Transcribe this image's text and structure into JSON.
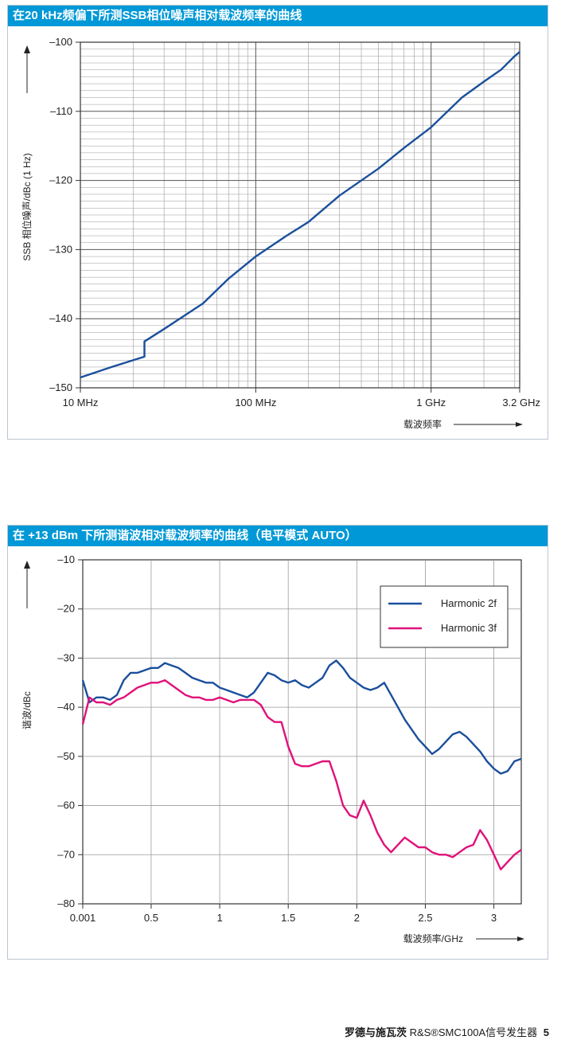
{
  "charts": [
    {
      "title": "在20 kHz频偏下所测SSB相位噪声相对载波频率的曲线"
    },
    {
      "title": "在 +13 dBm 下所测谐波相对载波频率的曲线（电平模式 AUTO）"
    }
  ],
  "footer": {
    "brand": "罗德与施瓦茨",
    "product": "R&S®SMC100A信号发生器",
    "page": "5"
  },
  "colors": {
    "header_bg": "#0098d6",
    "series_blue": "#1a4f9c",
    "series_magenta": "#e0117a",
    "grid": "#9a9a9a"
  },
  "chart_data": [
    {
      "type": "line",
      "title": "在20 kHz频偏下所测SSB相位噪声相对载波频率的曲线",
      "xlabel": "载波频率",
      "ylabel": "SSB 相位噪声/dBc (1 Hz)",
      "x_scale": "log",
      "xlim": [
        10,
        3200
      ],
      "ylim": [
        -150,
        -100
      ],
      "x_ticks": [
        10,
        100,
        1000,
        3200
      ],
      "x_tick_labels": [
        "10 MHz",
        "100 MHz",
        "1 GHz",
        "3.2 GHz"
      ],
      "y_ticks": [
        -150,
        -140,
        -130,
        -120,
        -110,
        -100
      ],
      "y_tick_labels": [
        "–150",
        "–140",
        "–130",
        "–120",
        "–110",
        "–100"
      ],
      "grid": true,
      "series": [
        {
          "x": [
            10,
            15,
            23.2,
            23.2,
            30,
            50,
            70,
            100,
            150,
            200,
            300,
            500,
            700,
            1000,
            1500,
            2000,
            2500,
            3000,
            3200
          ],
          "y": [
            -148.5,
            -147,
            -145.5,
            -143.3,
            -141.5,
            -137.8,
            -134.2,
            -131,
            -128,
            -126,
            -122.2,
            -118.3,
            -115.3,
            -112.3,
            -108,
            -105.7,
            -104,
            -102,
            -101.4
          ]
        }
      ]
    },
    {
      "type": "line",
      "title": "在 +13 dBm 下所测谐波相对载波频率的曲线（电平模式 AUTO）",
      "xlabel": "载波频率/GHz",
      "ylabel": "谐波/dBc",
      "xlim": [
        0.001,
        3.2
      ],
      "ylim": [
        -80,
        -10
      ],
      "x_ticks": [
        0.001,
        0.5,
        1,
        1.5,
        2,
        2.5,
        3
      ],
      "x_tick_labels": [
        "0.001",
        "0.5",
        "1",
        "1.5",
        "2",
        "2.5",
        "3"
      ],
      "y_ticks": [
        -80,
        -70,
        -60,
        -50,
        -40,
        -30,
        -20,
        -10
      ],
      "y_tick_labels": [
        "–80",
        "–70",
        "–60",
        "–50",
        "–40",
        "–30",
        "–20",
        "–10"
      ],
      "grid": true,
      "legend": "top-right",
      "series": [
        {
          "name": "Harmonic 2f",
          "x": [
            0.001,
            0.05,
            0.1,
            0.15,
            0.2,
            0.25,
            0.3,
            0.35,
            0.4,
            0.45,
            0.5,
            0.55,
            0.6,
            0.65,
            0.7,
            0.75,
            0.8,
            0.85,
            0.9,
            0.95,
            1.0,
            1.05,
            1.1,
            1.15,
            1.2,
            1.25,
            1.3,
            1.35,
            1.4,
            1.45,
            1.5,
            1.55,
            1.6,
            1.65,
            1.7,
            1.75,
            1.8,
            1.85,
            1.9,
            1.95,
            2.0,
            2.05,
            2.1,
            2.15,
            2.2,
            2.25,
            2.3,
            2.35,
            2.4,
            2.45,
            2.5,
            2.55,
            2.6,
            2.65,
            2.7,
            2.75,
            2.8,
            2.85,
            2.9,
            2.95,
            3.0,
            3.05,
            3.1,
            3.15,
            3.2
          ],
          "y": [
            -34.5,
            -39,
            -38,
            -38,
            -38.5,
            -37.5,
            -34.5,
            -33,
            -33,
            -32.5,
            -32,
            -32,
            -31,
            -31.5,
            -32,
            -33,
            -34,
            -34.5,
            -35,
            -35,
            -36,
            -36.5,
            -37,
            -37.5,
            -38,
            -37,
            -35,
            -33,
            -33.5,
            -34.5,
            -35,
            -34.5,
            -35.5,
            -36,
            -35,
            -34,
            -31.5,
            -30.5,
            -32,
            -34,
            -35,
            -36,
            -36.5,
            -36,
            -35,
            -37.5,
            -40,
            -42.5,
            -44.5,
            -46.5,
            -48,
            -49.5,
            -48.5,
            -47,
            -45.5,
            -45,
            -46,
            -47.5,
            -49,
            -51,
            -52.5,
            -53.5,
            -53,
            -51,
            -50.5
          ]
        },
        {
          "name": "Harmonic 3f",
          "x": [
            0.001,
            0.05,
            0.1,
            0.15,
            0.2,
            0.25,
            0.3,
            0.35,
            0.4,
            0.45,
            0.5,
            0.55,
            0.6,
            0.65,
            0.7,
            0.75,
            0.8,
            0.85,
            0.9,
            0.95,
            1.0,
            1.05,
            1.1,
            1.15,
            1.2,
            1.25,
            1.3,
            1.35,
            1.4,
            1.45,
            1.5,
            1.55,
            1.6,
            1.65,
            1.7,
            1.75,
            1.8,
            1.85,
            1.9,
            1.95,
            2.0,
            2.05,
            2.1,
            2.15,
            2.2,
            2.25,
            2.3,
            2.35,
            2.4,
            2.45,
            2.5,
            2.55,
            2.6,
            2.65,
            2.7,
            2.75,
            2.8,
            2.85,
            2.9,
            2.95,
            3.0,
            3.05,
            3.1,
            3.15,
            3.2
          ],
          "y": [
            -43.5,
            -38,
            -39,
            -39,
            -39.5,
            -38.5,
            -38,
            -37,
            -36,
            -35.5,
            -35,
            -35,
            -34.5,
            -35.5,
            -36.5,
            -37.5,
            -38,
            -38,
            -38.5,
            -38.5,
            -38,
            -38.5,
            -39,
            -38.5,
            -38.5,
            -38.5,
            -39.5,
            -42,
            -43,
            -43,
            -48,
            -51.5,
            -52,
            -52,
            -51.5,
            -51,
            -51,
            -55,
            -60,
            -62,
            -62.5,
            -59,
            -62,
            -65.5,
            -68,
            -69.5,
            -68,
            -66.5,
            -67.5,
            -68.5,
            -68.5,
            -69.5,
            -70,
            -70,
            -70.5,
            -69.5,
            -68.5,
            -68,
            -65,
            -67,
            -70,
            -73,
            -71.5,
            -70,
            -69
          ]
        }
      ]
    }
  ]
}
